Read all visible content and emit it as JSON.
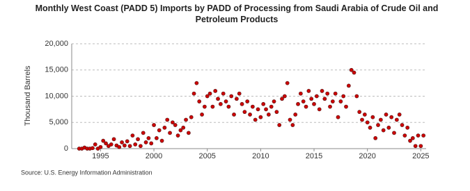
{
  "chart_data": {
    "type": "scatter",
    "title": "Monthly West Coast (PADD 5) Imports by PADD of Processing from Saudi Arabia of Crude Oil and Petroleum Products",
    "y_label": "Thousand Barrels",
    "source": "Source: U.S. Energy Information Administration",
    "color": "#cc0000",
    "xlim": [
      1992.3,
      2025.5
    ],
    "xticks": [
      1995,
      2000,
      2005,
      2010,
      2015,
      2020,
      2025
    ],
    "ylim": [
      0,
      20000
    ],
    "yticks": [
      0,
      {
        "value": 5000,
        "label": "5,000"
      },
      {
        "value": 10000,
        "label": "10,000"
      },
      {
        "value": 15000,
        "label": "15,000"
      },
      {
        "value": 20000,
        "label": "20,000"
      }
    ],
    "grid": true,
    "x": [
      1993,
      1993.25,
      1993.5,
      1993.75,
      1994,
      1994.25,
      1994.5,
      1994.75,
      1995,
      1995.25,
      1995.5,
      1995.75,
      1996,
      1996.25,
      1996.5,
      1996.75,
      1997,
      1997.25,
      1997.5,
      1997.75,
      1998,
      1998.25,
      1998.5,
      1998.75,
      1999,
      1999.25,
      1999.5,
      1999.75,
      2000,
      2000.25,
      2000.5,
      2000.75,
      2001,
      2001.25,
      2001.5,
      2001.75,
      2002,
      2002.25,
      2002.5,
      2002.75,
      2003,
      2003.25,
      2003.5,
      2003.75,
      2004,
      2004.25,
      2004.5,
      2004.75,
      2005,
      2005.25,
      2005.5,
      2005.75,
      2006,
      2006.25,
      2006.5,
      2006.75,
      2007,
      2007.25,
      2007.5,
      2007.75,
      2008,
      2008.25,
      2008.5,
      2008.75,
      2009,
      2009.25,
      2009.5,
      2009.75,
      2010,
      2010.25,
      2010.5,
      2010.75,
      2011,
      2011.25,
      2011.5,
      2011.75,
      2012,
      2012.25,
      2012.5,
      2012.75,
      2013,
      2013.25,
      2013.5,
      2013.75,
      2014,
      2014.25,
      2014.5,
      2014.75,
      2015,
      2015.25,
      2015.5,
      2015.75,
      2016,
      2016.25,
      2016.5,
      2016.75,
      2017,
      2017.25,
      2017.5,
      2017.75,
      2018,
      2018.25,
      2018.5,
      2018.75,
      2019,
      2019.25,
      2019.5,
      2019.75,
      2020,
      2020.25,
      2020.5,
      2020.75,
      2021,
      2021.25,
      2021.5,
      2021.75,
      2022,
      2022.25,
      2022.5,
      2022.75,
      2023,
      2023.25,
      2023.5,
      2023.75,
      2024,
      2024.25,
      2024.5,
      2024.75,
      2025,
      2025.25
    ],
    "values": [
      0,
      0,
      200,
      0,
      0,
      100,
      800,
      0,
      300,
      1500,
      1000,
      500,
      800,
      1800,
      600,
      300,
      1200,
      600,
      1400,
      500,
      2500,
      800,
      1800,
      500,
      3000,
      1200,
      2000,
      1000,
      4500,
      2000,
      3500,
      1500,
      4000,
      5500,
      3000,
      5000,
      4500,
      2500,
      3500,
      4000,
      5500,
      3000,
      6000,
      10500,
      12500,
      9000,
      6500,
      8000,
      10000,
      10500,
      8000,
      11000,
      9500,
      8500,
      10500,
      9000,
      8000,
      10000,
      6500,
      9500,
      10500,
      8500,
      7000,
      9000,
      6500,
      8000,
      5500,
      7500,
      6000,
      8500,
      7500,
      6500,
      8000,
      9000,
      7000,
      4500,
      9500,
      10000,
      12500,
      5500,
      4500,
      6500,
      8500,
      10500,
      9000,
      8000,
      11000,
      9500,
      8500,
      10000,
      7500,
      11000,
      9500,
      10500,
      8000,
      9000,
      10500,
      6000,
      9000,
      10000,
      8000,
      12000,
      15000,
      14500,
      10000,
      7000,
      5500,
      6500,
      5000,
      4000,
      6000,
      2000,
      4500,
      5500,
      3500,
      6500,
      4000,
      6000,
      3000,
      5500,
      6500,
      4500,
      2500,
      4000,
      1500,
      2000,
      500,
      2500,
      500,
      2500
    ]
  }
}
